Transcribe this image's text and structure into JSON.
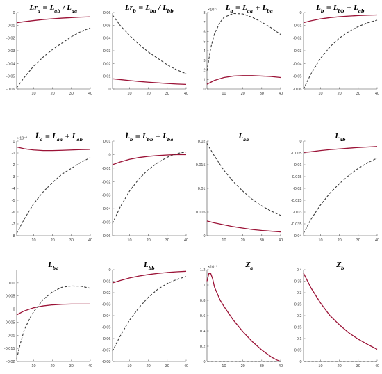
{
  "style": {
    "solid_color": "#9b1236",
    "dashed_color": "#3a3a3a",
    "axis_color": "#444444"
  },
  "chart_data": [
    {
      "type": "line",
      "title": "Lr_a = L_ab / L_aa",
      "xlim": [
        1,
        40
      ],
      "xticks": [
        10,
        20,
        30,
        40
      ],
      "ylim": [
        -0.06,
        0.0
      ],
      "yticks": [
        -0.06,
        -0.05,
        -0.04,
        -0.03,
        -0.02,
        -0.01,
        0
      ],
      "ytick_labels": [
        "-0.06",
        "-0.05",
        "-0.04",
        "-0.03",
        "-0.02",
        "-0.01",
        "0"
      ],
      "series": [
        {
          "style": "solid",
          "x": [
            1,
            5,
            10,
            15,
            20,
            25,
            30,
            35,
            40
          ],
          "y": [
            -0.008,
            -0.0072,
            -0.0063,
            -0.0055,
            -0.0049,
            -0.0044,
            -0.004,
            -0.0036,
            -0.0034
          ]
        },
        {
          "style": "dashed",
          "x": [
            1,
            5,
            10,
            15,
            20,
            25,
            30,
            35,
            40
          ],
          "y": [
            -0.059,
            -0.051,
            -0.042,
            -0.035,
            -0.029,
            -0.024,
            -0.019,
            -0.015,
            -0.012
          ]
        }
      ]
    },
    {
      "type": "line",
      "title": "Lr_b = L_ba / L_bb",
      "xlim": [
        1,
        40
      ],
      "xticks": [
        10,
        20,
        30,
        40
      ],
      "ylim": [
        0,
        0.06
      ],
      "yticks": [
        0,
        0.01,
        0.02,
        0.03,
        0.04,
        0.05,
        0.06
      ],
      "ytick_labels": [
        "0",
        "0.01",
        "0.02",
        "0.03",
        "0.04",
        "0.05",
        "0.06"
      ],
      "series": [
        {
          "style": "solid",
          "x": [
            1,
            5,
            10,
            15,
            20,
            25,
            30,
            35,
            40
          ],
          "y": [
            0.008,
            0.0074,
            0.0066,
            0.0059,
            0.0053,
            0.0048,
            0.0043,
            0.0039,
            0.0036
          ]
        },
        {
          "style": "dashed",
          "x": [
            1,
            5,
            10,
            15,
            20,
            25,
            30,
            35,
            40
          ],
          "y": [
            0.058,
            0.05,
            0.042,
            0.035,
            0.029,
            0.024,
            0.019,
            0.015,
            0.012
          ]
        }
      ]
    },
    {
      "type": "line",
      "title": "L_a = L_aa + L_ba",
      "scale_label": "×10⁻³",
      "xlim": [
        1,
        40
      ],
      "xticks": [
        10,
        20,
        30,
        40
      ],
      "ylim": [
        0,
        8
      ],
      "yticks": [
        0,
        1,
        2,
        3,
        4,
        5,
        6,
        7,
        8
      ],
      "ytick_labels": [
        "0",
        "1",
        "2",
        "3",
        "4",
        "5",
        "6",
        "7",
        "8"
      ],
      "series": [
        {
          "style": "solid",
          "x": [
            1,
            5,
            10,
            15,
            20,
            25,
            30,
            35,
            40
          ],
          "y": [
            0.5,
            0.9,
            1.2,
            1.35,
            1.4,
            1.4,
            1.35,
            1.3,
            1.2
          ]
        },
        {
          "style": "dashed",
          "x": [
            1,
            3,
            5,
            8,
            10,
            15,
            20,
            25,
            30,
            35,
            40
          ],
          "y": [
            1.9,
            4.3,
            5.8,
            7.0,
            7.5,
            7.9,
            7.85,
            7.5,
            7.0,
            6.4,
            5.7
          ]
        }
      ]
    },
    {
      "type": "line",
      "title": "L_b = L_bb + L_ab",
      "xlim": [
        1,
        40
      ],
      "xticks": [
        10,
        20,
        30,
        40
      ],
      "ylim": [
        -0.06,
        0.0
      ],
      "yticks": [
        -0.06,
        -0.05,
        -0.04,
        -0.03,
        -0.02,
        -0.01,
        0
      ],
      "ytick_labels": [
        "-0.06",
        "-0.05",
        "-0.04",
        "-0.03",
        "-0.02",
        "-0.01",
        "0"
      ],
      "series": [
        {
          "style": "solid",
          "x": [
            1,
            5,
            10,
            15,
            20,
            25,
            30,
            35,
            40
          ],
          "y": [
            -0.008,
            -0.0065,
            -0.005,
            -0.004,
            -0.0033,
            -0.0028,
            -0.0024,
            -0.0021,
            -0.0019
          ]
        },
        {
          "style": "dashed",
          "x": [
            1,
            5,
            10,
            15,
            20,
            25,
            30,
            35,
            40
          ],
          "y": [
            -0.06,
            -0.048,
            -0.036,
            -0.027,
            -0.02,
            -0.015,
            -0.011,
            -0.008,
            -0.006
          ]
        }
      ]
    },
    {
      "type": "line",
      "title": "L̃_a = L_aa + L_ab",
      "scale_label": "×10⁻³",
      "xlim": [
        1,
        40
      ],
      "xticks": [
        10,
        20,
        30,
        40
      ],
      "ylim": [
        -8,
        0
      ],
      "yticks": [
        -8,
        -7,
        -6,
        -5,
        -4,
        -3,
        -2,
        -1,
        0
      ],
      "ytick_labels": [
        "-8",
        "-7",
        "-6",
        "-5",
        "-4",
        "-3",
        "-2",
        "-1",
        "0"
      ],
      "series": [
        {
          "style": "solid",
          "x": [
            1,
            5,
            10,
            15,
            20,
            25,
            30,
            35,
            40
          ],
          "y": [
            -0.5,
            -0.65,
            -0.75,
            -0.8,
            -0.8,
            -0.78,
            -0.75,
            -0.72,
            -0.7
          ]
        },
        {
          "style": "dashed",
          "x": [
            1,
            5,
            10,
            15,
            20,
            25,
            30,
            35,
            40
          ],
          "y": [
            -7.8,
            -6.6,
            -5.3,
            -4.3,
            -3.5,
            -2.8,
            -2.3,
            -1.8,
            -1.4
          ]
        }
      ]
    },
    {
      "type": "line",
      "title": "L̃_b = L_bb + L_ba",
      "xlim": [
        1,
        40
      ],
      "xticks": [
        10,
        20,
        30,
        40
      ],
      "ylim": [
        -0.06,
        0.01
      ],
      "yticks": [
        -0.06,
        -0.05,
        -0.04,
        -0.03,
        -0.02,
        -0.01,
        0,
        0.01
      ],
      "ytick_labels": [
        "-0.06",
        "-0.05",
        "-0.04",
        "-0.03",
        "-0.02",
        "-0.01",
        "0",
        "0.01"
      ],
      "series": [
        {
          "style": "solid",
          "x": [
            1,
            5,
            10,
            15,
            20,
            25,
            30,
            35,
            40
          ],
          "y": [
            -0.0075,
            -0.0055,
            -0.0035,
            -0.0022,
            -0.0013,
            -0.0007,
            -0.0003,
            0.0,
            0.0
          ]
        },
        {
          "style": "dashed",
          "x": [
            1,
            5,
            10,
            15,
            20,
            25,
            30,
            35,
            40
          ],
          "y": [
            -0.051,
            -0.039,
            -0.027,
            -0.018,
            -0.011,
            -0.006,
            -0.002,
            0.0008,
            0.002
          ]
        }
      ]
    },
    {
      "type": "line",
      "title": "L_aa",
      "xlim": [
        1,
        40
      ],
      "xticks": [
        10,
        20,
        30,
        40
      ],
      "ylim": [
        0,
        0.02
      ],
      "yticks": [
        0,
        0.005,
        0.01,
        0.015,
        0.02
      ],
      "ytick_labels": [
        "0",
        "0.005",
        "0.01",
        "0.015",
        "0.02"
      ],
      "series": [
        {
          "style": "solid",
          "x": [
            1,
            5,
            10,
            15,
            20,
            25,
            30,
            35,
            40
          ],
          "y": [
            0.0031,
            0.0027,
            0.0023,
            0.0019,
            0.0016,
            0.0013,
            0.0011,
            0.00095,
            0.0008
          ]
        },
        {
          "style": "dashed",
          "x": [
            1,
            5,
            10,
            15,
            20,
            25,
            30,
            35,
            40
          ],
          "y": [
            0.0195,
            0.0168,
            0.0138,
            0.0114,
            0.0094,
            0.0077,
            0.0063,
            0.0052,
            0.0043
          ]
        }
      ]
    },
    {
      "type": "line",
      "title": "L_ab",
      "xlim": [
        1,
        40
      ],
      "xticks": [
        10,
        20,
        30,
        40
      ],
      "ylim": [
        -0.04,
        0.0
      ],
      "yticks": [
        -0.04,
        -0.035,
        -0.03,
        -0.025,
        -0.02,
        -0.015,
        -0.01,
        -0.005,
        0
      ],
      "ytick_labels": [
        "-0.04",
        "-0.035",
        "-0.03",
        "-0.025",
        "-0.02",
        "-0.015",
        "-0.01",
        "-0.005",
        "0"
      ],
      "series": [
        {
          "style": "solid",
          "x": [
            1,
            5,
            10,
            15,
            20,
            25,
            30,
            35,
            40
          ],
          "y": [
            -0.0048,
            -0.0045,
            -0.004,
            -0.0036,
            -0.0033,
            -0.003,
            -0.0027,
            -0.0025,
            -0.0023
          ]
        },
        {
          "style": "dashed",
          "x": [
            1,
            5,
            10,
            15,
            20,
            25,
            30,
            35,
            40
          ],
          "y": [
            -0.039,
            -0.033,
            -0.027,
            -0.022,
            -0.018,
            -0.0145,
            -0.0115,
            -0.0092,
            -0.0072
          ]
        }
      ]
    },
    {
      "type": "line",
      "title": "L_ba",
      "xlim": [
        1,
        40
      ],
      "xticks": [
        10,
        20,
        30,
        40
      ],
      "ylim": [
        -0.02,
        0.015
      ],
      "yticks": [
        -0.02,
        -0.015,
        -0.01,
        -0.005,
        0,
        0.005,
        0.01
      ],
      "ytick_labels": [
        "-0.02",
        "-0.015",
        "-0.01",
        "-0.005",
        "0",
        "0.005",
        "0.01"
      ],
      "series": [
        {
          "style": "solid",
          "x": [
            1,
            5,
            10,
            15,
            20,
            25,
            30,
            35,
            40
          ],
          "y": [
            -0.0022,
            -0.0007,
            0.0005,
            0.0012,
            0.0016,
            0.0018,
            0.0019,
            0.0019,
            0.0019
          ]
        },
        {
          "style": "dashed",
          "x": [
            1,
            3,
            5,
            8,
            10,
            15,
            20,
            25,
            30,
            35,
            40
          ],
          "y": [
            -0.019,
            -0.013,
            -0.008,
            -0.0035,
            -0.001,
            0.0036,
            0.0066,
            0.0083,
            0.0088,
            0.0087,
            0.0079
          ]
        }
      ]
    },
    {
      "type": "line",
      "title": "L_bb",
      "xlim": [
        1,
        40
      ],
      "xticks": [
        10,
        20,
        30,
        40
      ],
      "ylim": [
        -0.08,
        0.0
      ],
      "yticks": [
        -0.08,
        -0.07,
        -0.06,
        -0.05,
        -0.04,
        -0.03,
        -0.02,
        -0.01,
        0
      ],
      "ytick_labels": [
        "-0.08",
        "-0.07",
        "-0.06",
        "-0.05",
        "-0.04",
        "-0.03",
        "-0.02",
        "-0.01",
        "0"
      ],
      "series": [
        {
          "style": "solid",
          "x": [
            1,
            5,
            10,
            15,
            20,
            25,
            30,
            35,
            40
          ],
          "y": [
            -0.0115,
            -0.0095,
            -0.0072,
            -0.0055,
            -0.0042,
            -0.0032,
            -0.0024,
            -0.0018,
            -0.0014
          ]
        },
        {
          "style": "dashed",
          "x": [
            1,
            5,
            10,
            15,
            20,
            25,
            30,
            35,
            40
          ],
          "y": [
            -0.071,
            -0.058,
            -0.044,
            -0.033,
            -0.024,
            -0.017,
            -0.012,
            -0.0085,
            -0.006
          ]
        }
      ]
    },
    {
      "type": "line",
      "title": "Z_a",
      "scale_label": "×10⁻³",
      "xlim": [
        1,
        40
      ],
      "xticks": [
        10,
        20,
        30,
        40
      ],
      "ylim": [
        0,
        1.2
      ],
      "yticks": [
        0,
        0.2,
        0.4,
        0.6,
        0.8,
        1,
        1.2
      ],
      "ytick_labels": [
        "0",
        "0.2",
        "0.4",
        "0.6",
        "0.8",
        "1",
        "1.2"
      ],
      "series": [
        {
          "style": "solid",
          "x": [
            1,
            2,
            3,
            4,
            5,
            8,
            10,
            15,
            20,
            25,
            30,
            35,
            38,
            40
          ],
          "y": [
            1.05,
            1.15,
            1.15,
            1.08,
            0.97,
            0.8,
            0.72,
            0.54,
            0.39,
            0.26,
            0.15,
            0.06,
            0.02,
            0.0
          ]
        },
        {
          "style": "dashed",
          "x": [
            1,
            40
          ],
          "y": [
            0,
            0
          ]
        }
      ]
    },
    {
      "type": "line",
      "title": "Z_b",
      "xlim": [
        1,
        40
      ],
      "xticks": [
        10,
        20,
        30,
        40
      ],
      "ylim": [
        0,
        0.4
      ],
      "yticks": [
        0,
        0.05,
        0.1,
        0.15,
        0.2,
        0.25,
        0.3,
        0.35,
        0.4
      ],
      "ytick_labels": [
        "0",
        "0.05",
        "0.1",
        "0.15",
        "0.2",
        "0.25",
        "0.3",
        "0.35",
        "0.4"
      ],
      "series": [
        {
          "style": "solid",
          "x": [
            1,
            5,
            10,
            15,
            20,
            25,
            30,
            35,
            40
          ],
          "y": [
            0.385,
            0.32,
            0.255,
            0.2,
            0.16,
            0.125,
            0.097,
            0.074,
            0.053
          ]
        },
        {
          "style": "dashed",
          "x": [
            1,
            40
          ],
          "y": [
            0,
            0
          ]
        }
      ]
    }
  ]
}
